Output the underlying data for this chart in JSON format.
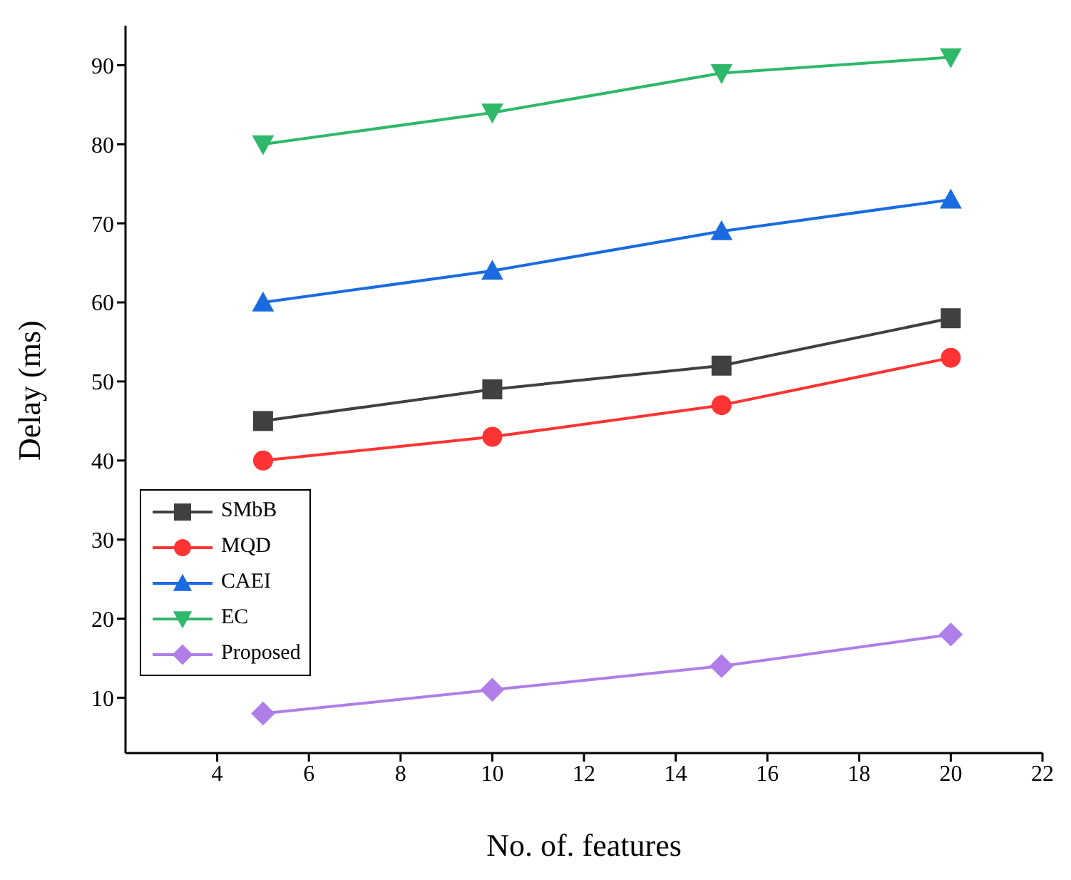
{
  "chart_data": {
    "type": "line",
    "xlabel": "No. of. features",
    "ylabel": "Delay (ms)",
    "x": [
      5,
      10,
      15,
      20
    ],
    "series": [
      {
        "name": "SMbB",
        "color": "#404040",
        "marker": "square",
        "values": [
          45,
          49,
          52,
          58
        ]
      },
      {
        "name": "MQD",
        "color": "#ff3333",
        "marker": "circle",
        "values": [
          40,
          43,
          47,
          53
        ]
      },
      {
        "name": "CAEI",
        "color": "#1a6be0",
        "marker": "triangle",
        "values": [
          60,
          64,
          69,
          73
        ]
      },
      {
        "name": "EC",
        "color": "#2fb86a",
        "marker": "triangle-down",
        "values": [
          80,
          84,
          89,
          91
        ]
      },
      {
        "name": "Proposed",
        "color": "#b07ee8",
        "marker": "diamond",
        "values": [
          8,
          11,
          14,
          18
        ]
      }
    ],
    "xlim": [
      2,
      22
    ],
    "xticks": [
      4,
      6,
      8,
      10,
      12,
      14,
      16,
      18,
      20,
      22
    ],
    "ylim": [
      3,
      95
    ],
    "yticks": [
      10,
      20,
      30,
      40,
      50,
      60,
      70,
      80,
      90
    ],
    "grid": false,
    "legend": "bottom left",
    "line_style": "solid"
  }
}
